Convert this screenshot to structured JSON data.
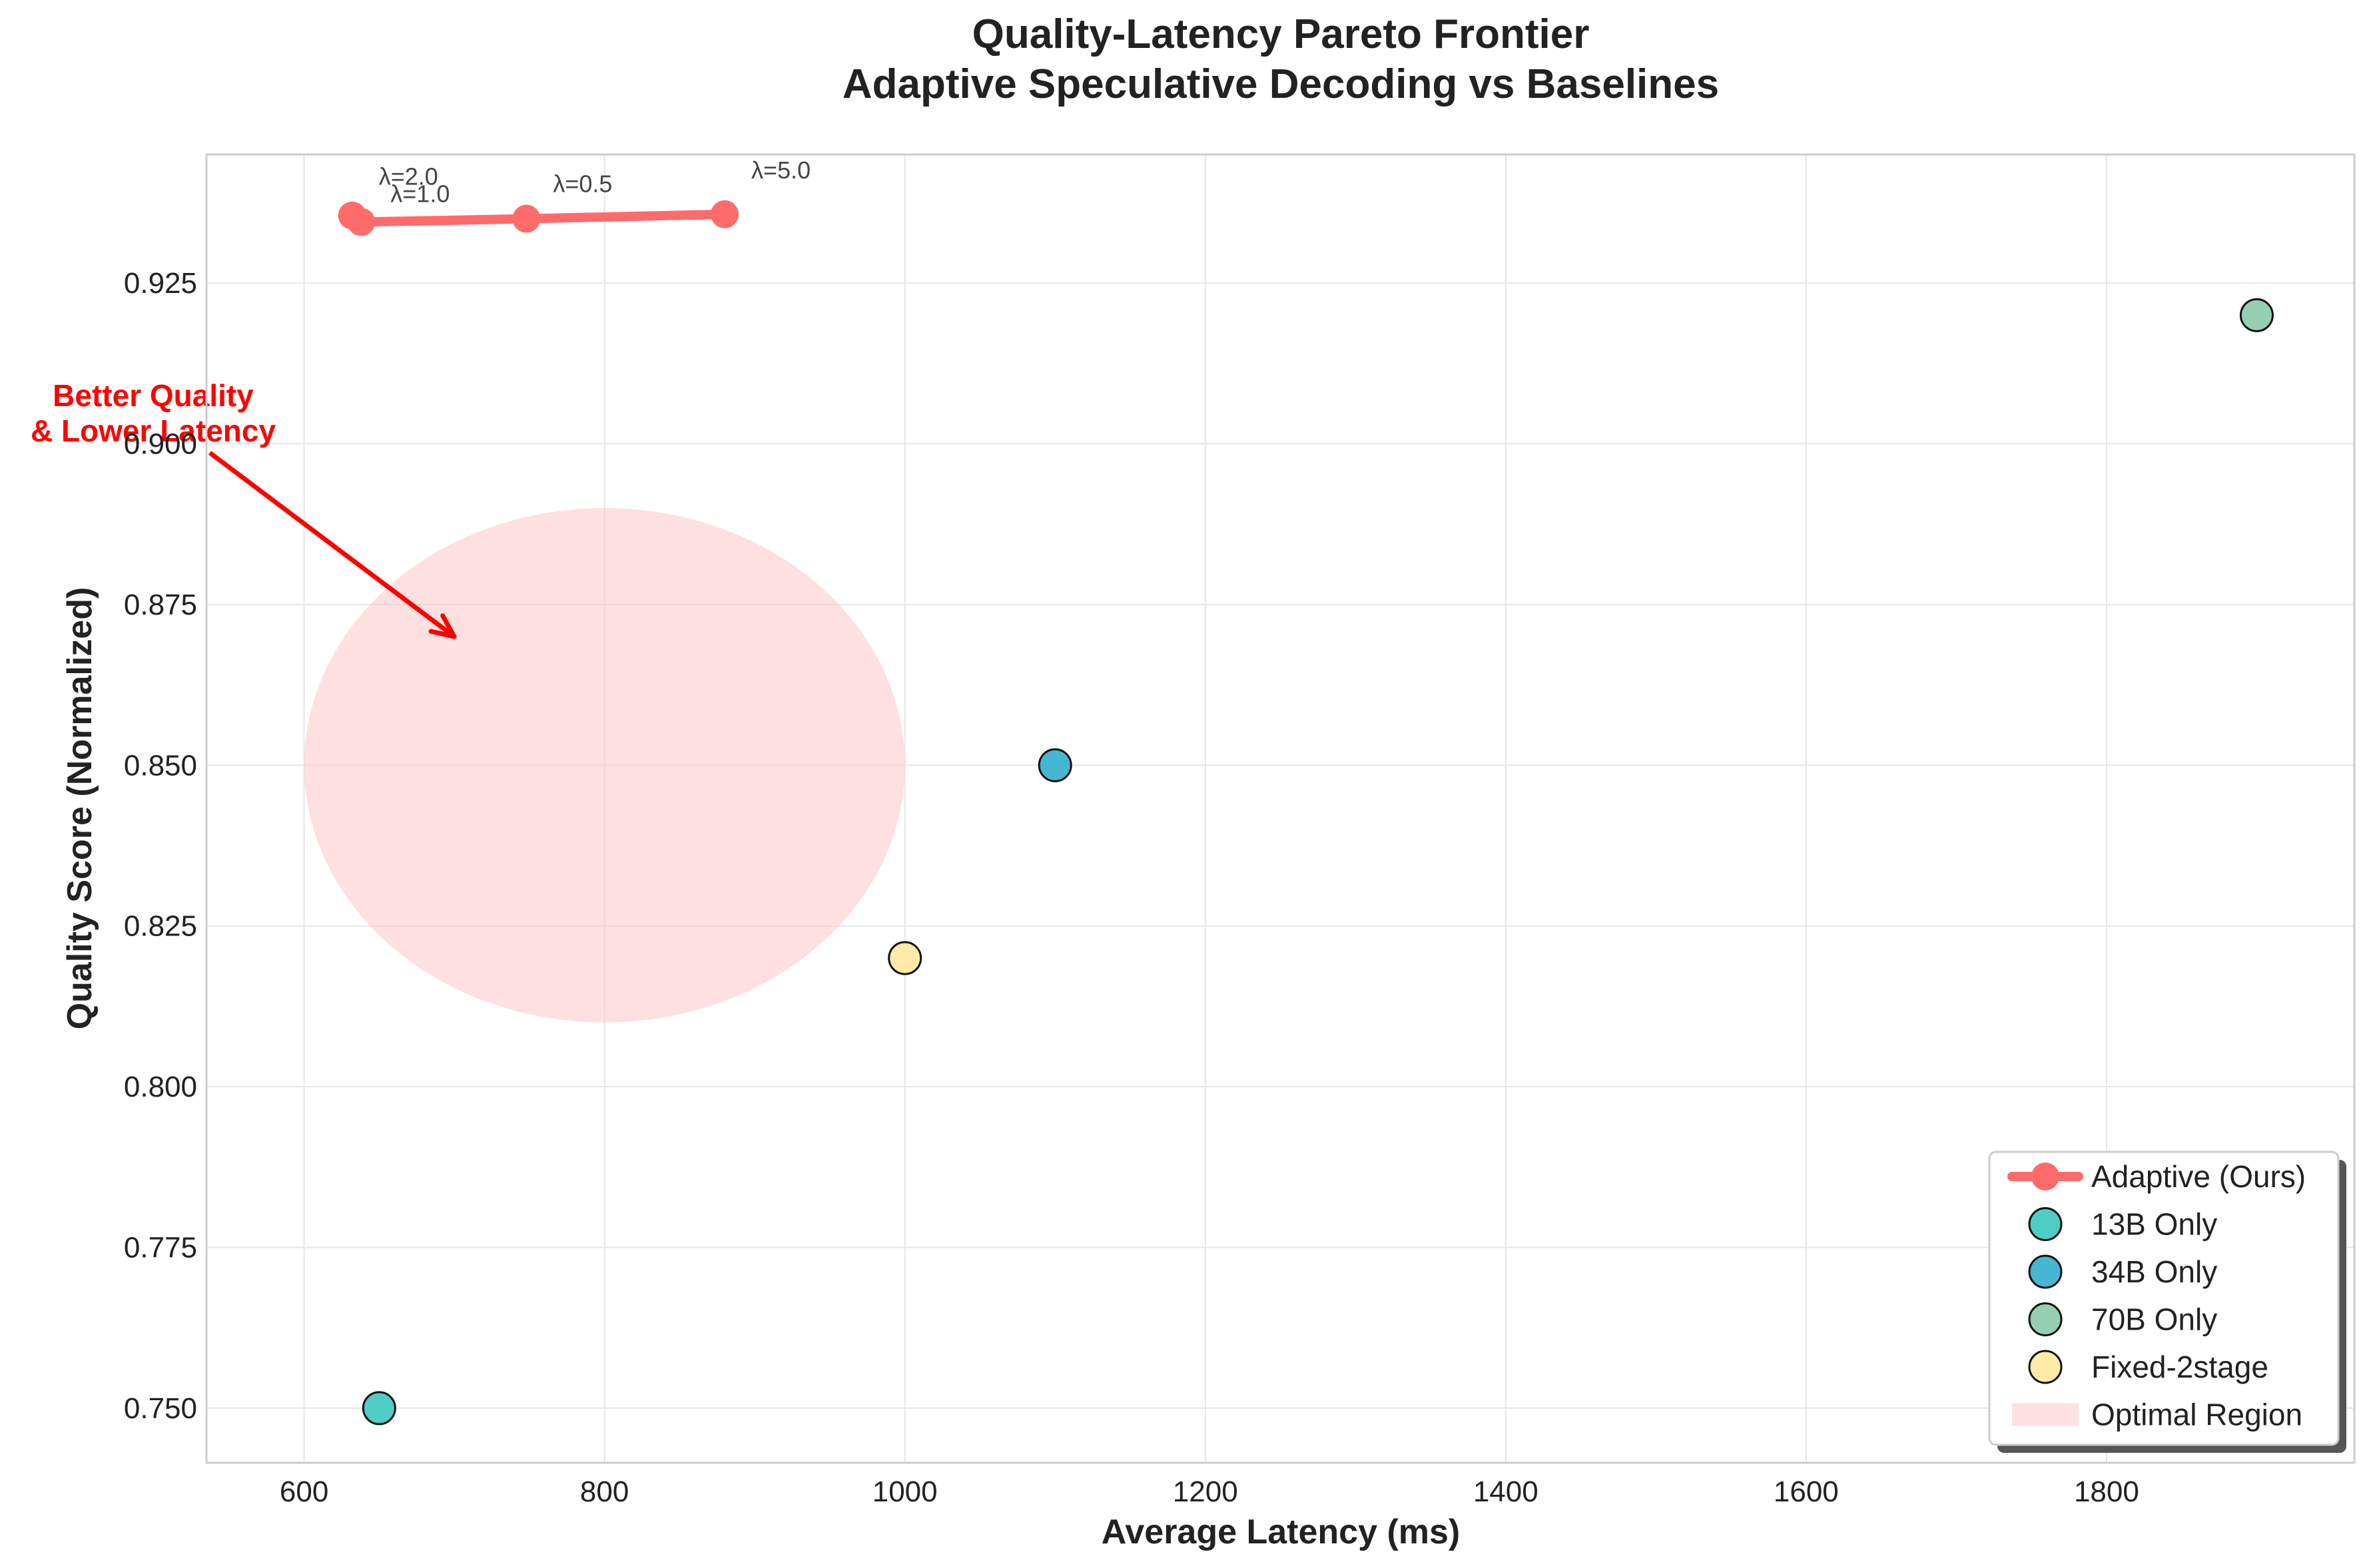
{
  "chart_data": {
    "type": "scatter",
    "title": "Quality-Latency Pareto Frontier",
    "subtitle": "Adaptive Speculative Decoding vs Baselines",
    "xlabel": "Average Latency (ms)",
    "ylabel": "Quality Score (Normalized)",
    "xlim": [
      535,
      1965
    ],
    "ylim": [
      0.7415,
      0.945
    ],
    "x_ticks": [
      600,
      800,
      1000,
      1200,
      1400,
      1600,
      1800
    ],
    "x_tick_labels": [
      "600",
      "800",
      "1000",
      "1200",
      "1400",
      "1600",
      "1800"
    ],
    "y_ticks": [
      0.75,
      0.775,
      0.8,
      0.825,
      0.85,
      0.875,
      0.9,
      0.925
    ],
    "y_tick_labels": [
      "0.750",
      "0.775",
      "0.800",
      "0.825",
      "0.850",
      "0.875",
      "0.900",
      "0.925"
    ],
    "grid": true,
    "legend_position": "lower-right",
    "series": [
      {
        "name": "Adaptive (Ours)",
        "kind": "line",
        "color": "#ff6b6b",
        "points": [
          {
            "x": 632,
            "y": 0.9355,
            "label": "λ=2.0"
          },
          {
            "x": 638,
            "y": 0.9345,
            "label": "λ=1.0"
          },
          {
            "x": 748,
            "y": 0.935,
            "label": "λ=0.5"
          },
          {
            "x": 880,
            "y": 0.9357,
            "label": "λ=5.0"
          }
        ]
      },
      {
        "name": "13B Only",
        "kind": "scatter",
        "color": "#4ecdc4",
        "points": [
          {
            "x": 650,
            "y": 0.75
          }
        ]
      },
      {
        "name": "34B Only",
        "kind": "scatter",
        "color": "#45b7d1",
        "points": [
          {
            "x": 1100,
            "y": 0.85
          }
        ]
      },
      {
        "name": "70B Only",
        "kind": "scatter",
        "color": "#96ceb4",
        "points": [
          {
            "x": 1900,
            "y": 0.92
          }
        ]
      },
      {
        "name": "Fixed-2stage",
        "kind": "scatter",
        "color": "#ffeaa7",
        "points": [
          {
            "x": 1000,
            "y": 0.82
          }
        ]
      }
    ],
    "region": {
      "name": "Optimal Region",
      "color": "#ffcccc",
      "center_x": 800,
      "center_y": 0.85,
      "width_x": 400,
      "height_y": 0.08
    },
    "annotation": {
      "text_lines": [
        "Better Quality",
        "& Lower Latency"
      ],
      "color": "#ff0000",
      "arrow_to": {
        "x": 700,
        "y": 0.87
      }
    }
  }
}
